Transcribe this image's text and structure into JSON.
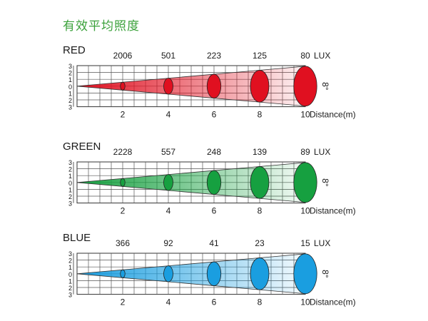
{
  "page_title": "有效平均照度",
  "colors": {
    "title": "#3aa13a"
  },
  "chart_data": [
    {
      "type": "beam-illuminance",
      "title": "RED",
      "unit": "LUX",
      "xlabel": "Distance(m)",
      "y_ticks": [
        "3",
        "2",
        "1",
        "0",
        "1",
        "2",
        "3"
      ],
      "beam_angle_label": "8°",
      "x": [
        2,
        4,
        6,
        8,
        10
      ],
      "values": [
        2006,
        501,
        223,
        125,
        80
      ],
      "color": "#e01020"
    },
    {
      "type": "beam-illuminance",
      "title": "GREEN",
      "unit": "LUX",
      "xlabel": "Distance(m)",
      "y_ticks": [
        "3",
        "2",
        "1",
        "0",
        "1",
        "2",
        "3"
      ],
      "beam_angle_label": "8°",
      "x": [
        2,
        4,
        6,
        8,
        10
      ],
      "values": [
        2228,
        557,
        248,
        139,
        89
      ],
      "color": "#16a040"
    },
    {
      "type": "beam-illuminance",
      "title": "BLUE",
      "unit": "LUX",
      "xlabel": "Distance(m)",
      "y_ticks": [
        "3",
        "2",
        "1",
        "0",
        "1",
        "2",
        "3"
      ],
      "beam_angle_label": "8°",
      "x": [
        2,
        4,
        6,
        8,
        10
      ],
      "values": [
        366,
        92,
        41,
        23,
        15
      ],
      "color": "#1a9ee0"
    }
  ]
}
